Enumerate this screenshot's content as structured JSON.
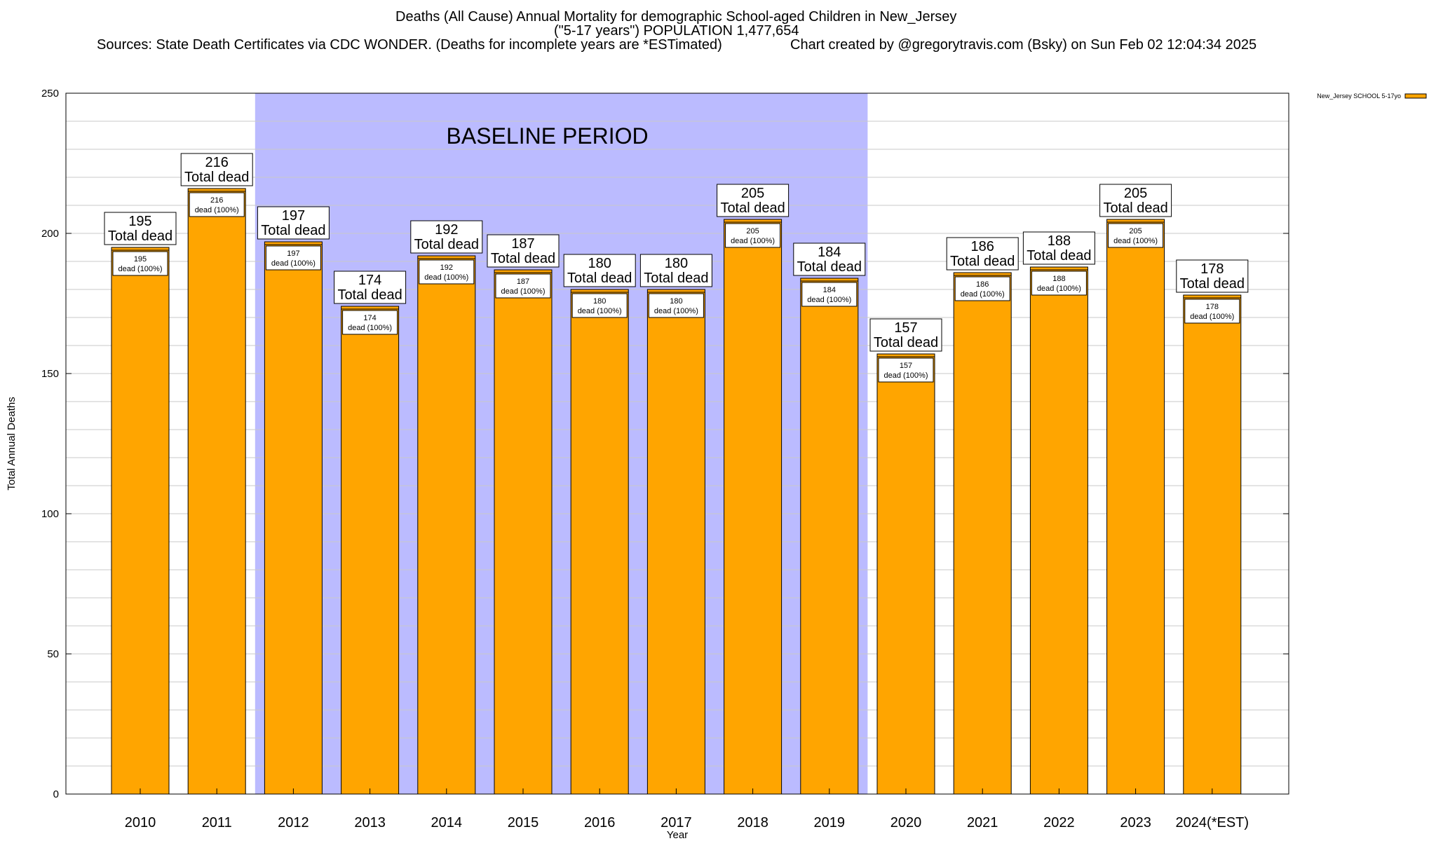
{
  "header": {
    "title": "Deaths (All Cause) Annual Mortality for demographic School-aged Children in New_Jersey",
    "subtitle": "(\"5-17 years\") POPULATION 1,477,654",
    "sources": "Sources: State Death Certificates via CDC WONDER. (Deaths for incomplete years are *ESTimated)",
    "credit": "Chart created by @gregorytravis.com (Bsky) on Sun Feb 02 12:04:34 2025"
  },
  "colors": {
    "bar": "#ffa500",
    "baseline_band": "#bbbbff",
    "grid": "#c8c8c8",
    "axis": "#000000"
  },
  "chart_data": {
    "type": "bar",
    "title": "Deaths (All Cause) Annual Mortality for demographic School-aged Children in New_Jersey",
    "xlabel": "Year",
    "ylabel": "Total Annual Deaths",
    "ylim": [
      0,
      250
    ],
    "yticks": [
      0,
      50,
      100,
      150,
      200,
      250
    ],
    "minor_grid_step": 10,
    "grid": true,
    "legend_position": "top-right",
    "categories": [
      "2010",
      "2011",
      "2012",
      "2013",
      "2014",
      "2015",
      "2016",
      "2017",
      "2018",
      "2019",
      "2020",
      "2021",
      "2022",
      "2023",
      "2024(*EST)"
    ],
    "series": [
      {
        "name": "New_Jersey SCHOOL 5-17yo",
        "values": [
          195,
          216,
          197,
          174,
          192,
          187,
          180,
          180,
          205,
          184,
          157,
          186,
          188,
          205,
          178
        ]
      }
    ],
    "total_label_suffix": "Total dead",
    "inner_label_suffix": "dead (100%)",
    "annotation": {
      "text": "BASELINE PERIOD",
      "start_category": "2012",
      "end_category": "2019"
    }
  }
}
